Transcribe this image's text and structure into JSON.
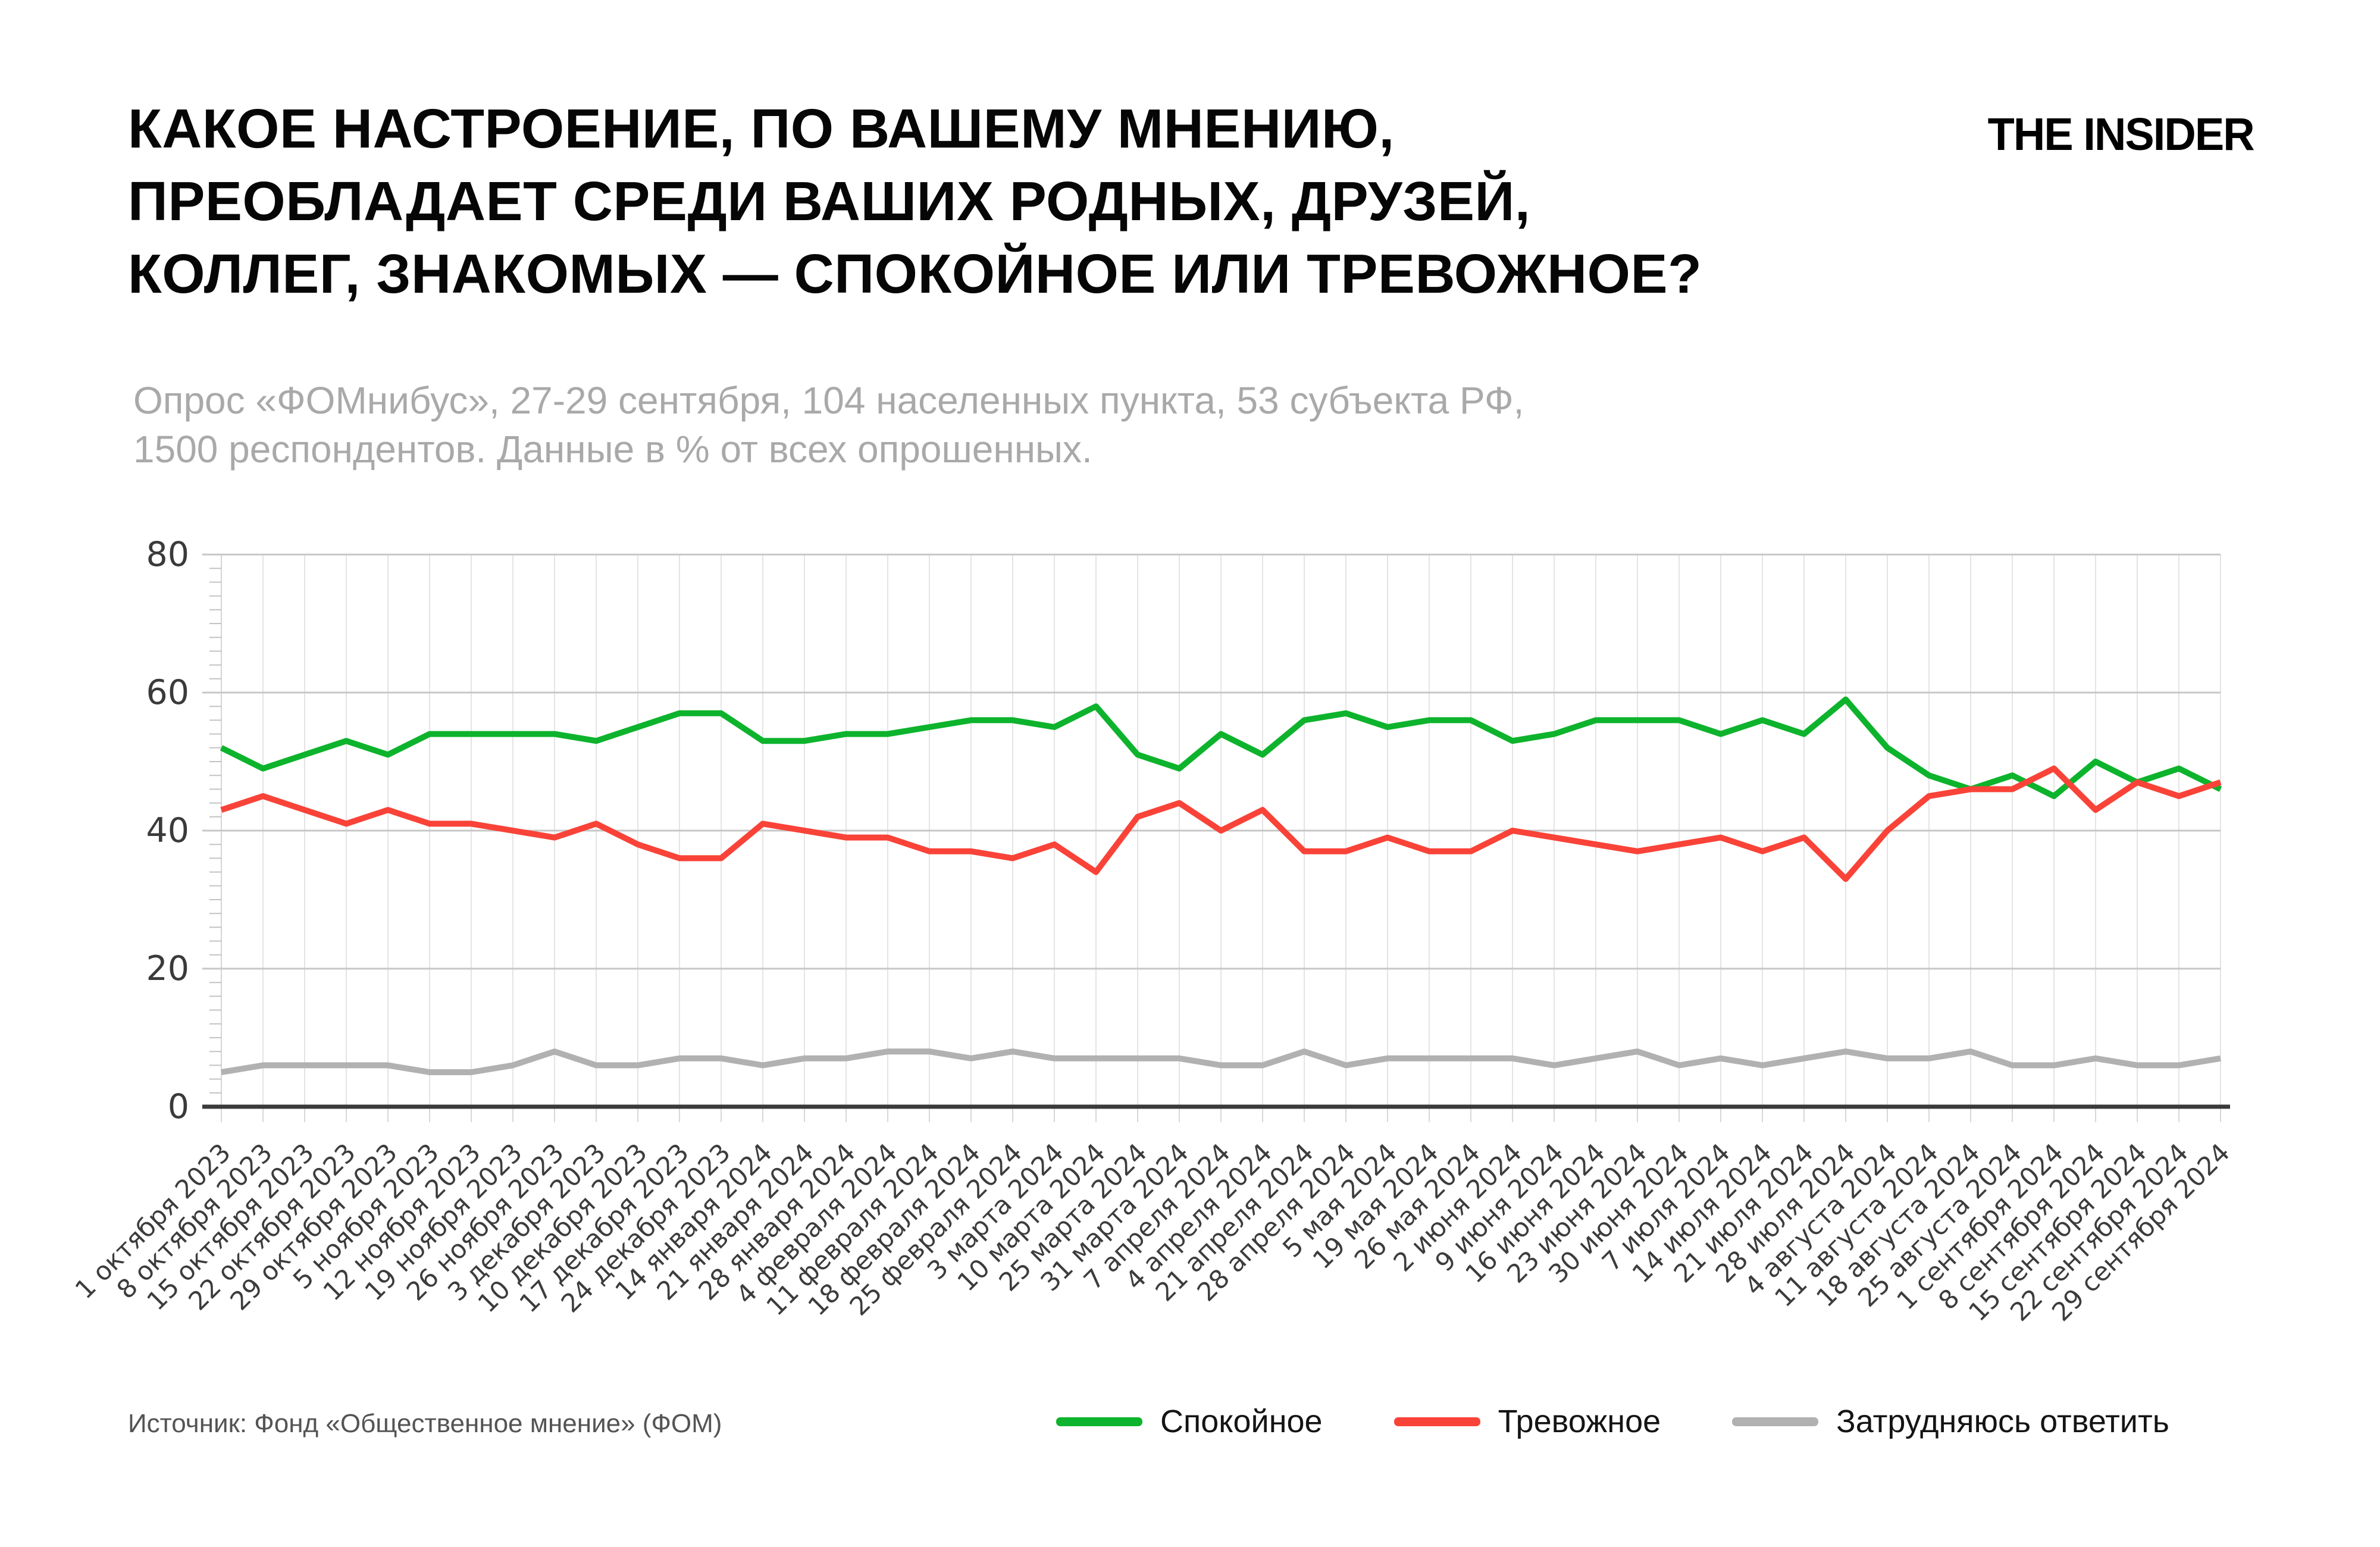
{
  "header": {
    "title_lines": [
      "КАКОЕ НАСТРОЕНИЕ, ПО ВАШЕМУ МНЕНИЮ,",
      "ПРЕОБЛАДАЕТ СРЕДИ ВАШИХ РОДНЫХ, ДРУЗЕЙ,",
      "КОЛЛЕГ, ЗНАКОМЫХ — СПОКОЙНОЕ ИЛИ ТРЕВОЖНОЕ?"
    ],
    "logo": "THE INSIDER",
    "subtitle_lines": [
      "Опрос «ФОМнибус», 27-29 сентября, 104 населенных пункта, 53 субъекта РФ,",
      "1500 респондентов. Данные в % от всех опрошенных."
    ]
  },
  "footer": {
    "source": "Источник: Фонд «Общественное мнение» (ФОМ)"
  },
  "chart_data": {
    "type": "line",
    "title": "",
    "xlabel": "",
    "ylabel": "",
    "ylim": [
      0,
      80
    ],
    "yticks": [
      0,
      20,
      40,
      60,
      80
    ],
    "grid": true,
    "legend_position": "bottom",
    "x": [
      "1 октября 2023",
      "8 октября 2023",
      "15 октября 2023",
      "22 октября 2023",
      "29 октября 2023",
      "5 ноября 2023",
      "12 ноября 2023",
      "19 ноября 2023",
      "26 ноября 2023",
      "3 декабря 2023",
      "10 декабря 2023",
      "17 декабря 2023",
      "24 декабря 2023",
      "14 января 2024",
      "21 января 2024",
      "28 января 2024",
      "4 февраля 2024",
      "11 февраля 2024",
      "18 февраля 2024",
      "25 февраля 2024",
      "3 марта 2024",
      "10 марта 2024",
      "25 марта 2024",
      "31 марта 2024",
      "7 апреля 2024",
      "4 апреля 2024",
      "21 апреля 2024",
      "28 апреля 2024",
      "5 мая 2024",
      "19 мая 2024",
      "26 мая 2024",
      "2 июня 2024",
      "9 июня 2024",
      "16 июня 2024",
      "23 июня 2024",
      "30 июня 2024",
      "7 июля 2024",
      "14 июля 2024",
      "21 июля 2024",
      "28 июля 2024",
      "4 августа 2024",
      "11 августа 2024",
      "18 августа 2024",
      "25 августа 2024",
      "1 сентября 2024",
      "8 сентября 2024",
      "15 сентября 2024",
      "22 сентября 2024",
      "29 сентября 2024"
    ],
    "series": [
      {
        "name": "Спокойное",
        "color": "#0db32c",
        "values": [
          52,
          49,
          51,
          53,
          51,
          54,
          54,
          54,
          54,
          53,
          55,
          57,
          57,
          53,
          53,
          54,
          54,
          55,
          56,
          56,
          55,
          58,
          51,
          49,
          54,
          51,
          56,
          57,
          55,
          56,
          56,
          53,
          54,
          56,
          56,
          56,
          54,
          56,
          54,
          59,
          52,
          48,
          46,
          48,
          45,
          50,
          47,
          49,
          46
        ]
      },
      {
        "name": "Тревожное",
        "color": "#f94338",
        "values": [
          43,
          45,
          43,
          41,
          43,
          41,
          41,
          40,
          39,
          41,
          38,
          36,
          36,
          41,
          40,
          39,
          39,
          37,
          37,
          36,
          38,
          34,
          42,
          44,
          40,
          43,
          37,
          37,
          39,
          37,
          37,
          40,
          39,
          38,
          37,
          38,
          39,
          37,
          39,
          33,
          40,
          45,
          46,
          46,
          49,
          43,
          47,
          45,
          47
        ]
      },
      {
        "name": "Затрудняюсь ответить",
        "color": "#b1b1b1",
        "values": [
          5,
          6,
          6,
          6,
          6,
          5,
          5,
          6,
          8,
          6,
          6,
          7,
          7,
          6,
          7,
          7,
          8,
          8,
          7,
          8,
          7,
          7,
          7,
          7,
          6,
          6,
          8,
          6,
          7,
          7,
          7,
          7,
          6,
          7,
          8,
          6,
          7,
          6,
          7,
          8,
          7,
          7,
          8,
          6,
          6,
          7,
          6,
          6,
          7
        ]
      }
    ]
  }
}
